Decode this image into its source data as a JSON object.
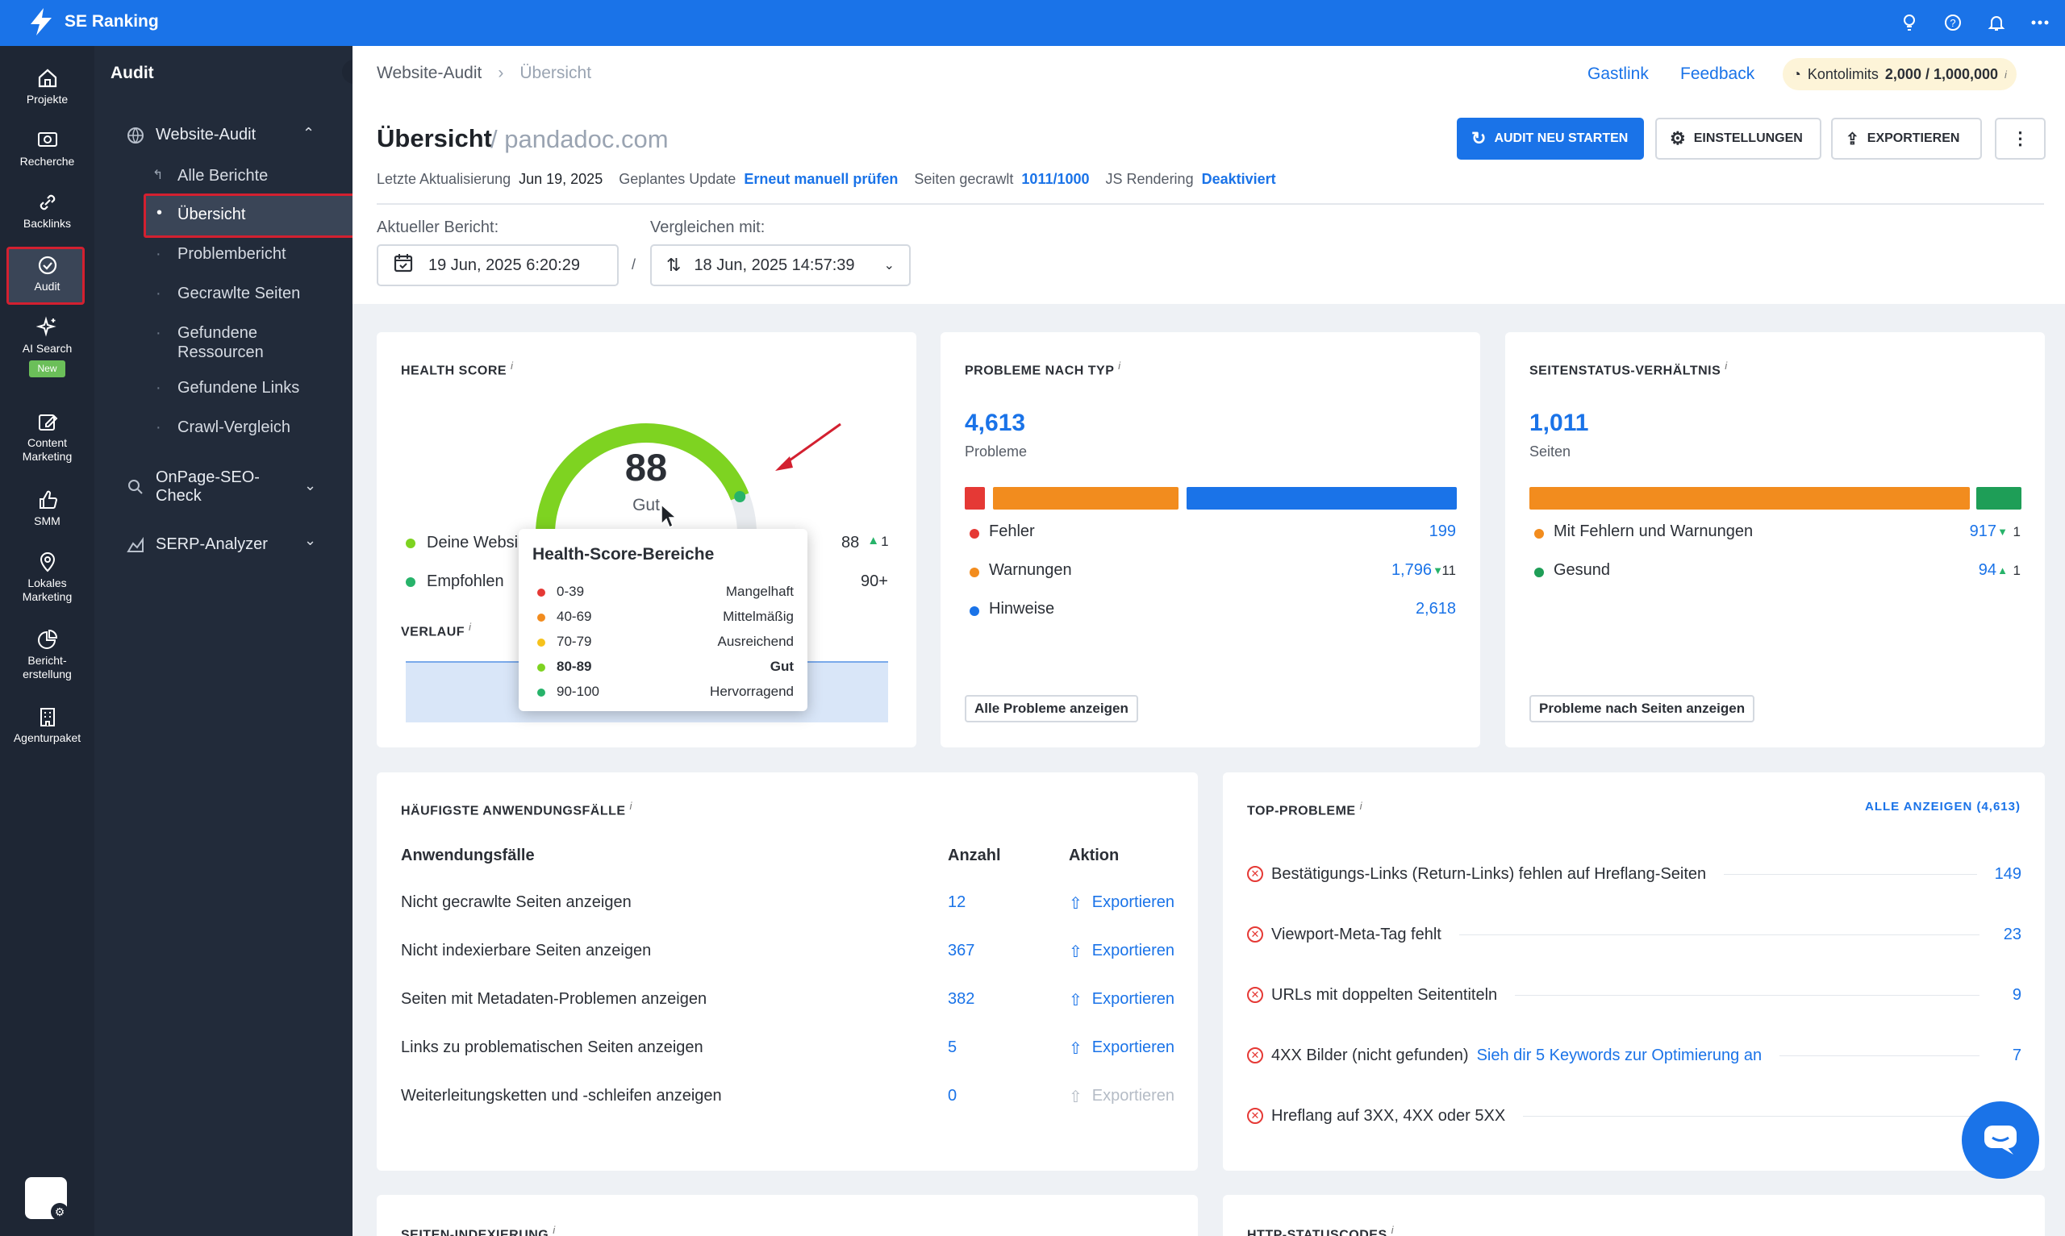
{
  "app": {
    "name": "SE Ranking"
  },
  "leftnav": [
    {
      "label": "Projekte",
      "icon": "home-icon"
    },
    {
      "label": "Recherche",
      "icon": "search-icon"
    },
    {
      "label": "Backlinks",
      "icon": "link-icon"
    },
    {
      "label": "Audit",
      "icon": "check-circle-icon"
    },
    {
      "label": "AI Search",
      "icon": "sparkle-icon",
      "badge": "New"
    },
    {
      "label": "Content Marketing",
      "icon": "edit-icon"
    },
    {
      "label": "SMM",
      "icon": "thumbs-up-icon"
    },
    {
      "label": "Lokales Marketing",
      "icon": "location-icon"
    },
    {
      "label": "Bericht-erstellung",
      "icon": "pie-chart-icon"
    },
    {
      "label": "Agenturpaket",
      "icon": "building-icon"
    }
  ],
  "subnav": {
    "title": "Audit",
    "website_audit": "Website-Audit",
    "items": [
      "Alle Berichte",
      "Übersicht",
      "Problembericht",
      "Gecrawlte Seiten",
      "Gefundene Ressourcen",
      "Gefundene Links",
      "Crawl-Vergleich"
    ],
    "onpage": "OnPage-SEO-Check",
    "serp": "SERP-Analyzer"
  },
  "breadcrumb": {
    "parent": "Website-Audit",
    "current": "Übersicht"
  },
  "header_links": {
    "guest": "Gastlink",
    "feedback": "Feedback",
    "limits_label": "Kontolimits",
    "limits_value": "2,000 / 1,000,000"
  },
  "page": {
    "title": "Übersicht",
    "domain": "/ pandadoc.com"
  },
  "meta": {
    "last_update_label": "Letzte Aktualisierung",
    "last_update": "Jun 19, 2025",
    "planned_label": "Geplantes Update",
    "planned": "Erneut manuell prüfen",
    "crawled_label": "Seiten gecrawlt",
    "crawled": "1011/1000",
    "js_label": "JS Rendering",
    "js": "Deaktiviert"
  },
  "actions": {
    "restart": "AUDIT NEU STARTEN",
    "settings": "EINSTELLUNGEN",
    "export": "EXPORTIEREN"
  },
  "reports": {
    "current_label": "Aktueller Bericht:",
    "current": "19 Jun, 2025 6:20:29",
    "compare_label": "Vergleichen mit:",
    "compare": "18 Jun, 2025 14:57:39",
    "separator": "/"
  },
  "health": {
    "title": "HEALTH SCORE",
    "score": "88",
    "score_value": 88,
    "rating": "Gut",
    "yours_label": "Deine Websi",
    "yours_value": "88",
    "yours_delta": "1",
    "recommended_label": "Empfohlen",
    "recommended_value": "90+",
    "history_label": "VERLAUF"
  },
  "tooltip": {
    "title": "Health-Score-Bereiche",
    "rows": [
      {
        "range": "0-39",
        "label": "Mangelhaft",
        "color": "#e53935"
      },
      {
        "range": "40-69",
        "label": "Mittelmäßig",
        "color": "#f28c1e"
      },
      {
        "range": "70-79",
        "label": "Ausreichend",
        "color": "#f6c21c"
      },
      {
        "range": "80-89",
        "label": "Gut",
        "color": "#7ed321"
      },
      {
        "range": "90-100",
        "label": "Hervorragend",
        "color": "#27b36a"
      }
    ]
  },
  "issues": {
    "title": "PROBLEME NACH TYP",
    "total": "4,613",
    "unit": "Probleme",
    "rows": [
      {
        "label": "Fehler",
        "value": "199",
        "delta": "",
        "color": "#e53935"
      },
      {
        "label": "Warnungen",
        "value": "1,796",
        "delta": "11",
        "color": "#f28c1e"
      },
      {
        "label": "Hinweise",
        "value": "2,618",
        "delta": "",
        "color": "#1a73e8"
      }
    ],
    "button": "Alle Probleme anzeigen"
  },
  "status": {
    "title": "SEITENSTATUS-VERHÄLTNIS",
    "total": "1,011",
    "unit": "Seiten",
    "rows": [
      {
        "label": "Mit Fehlern und Warnungen",
        "value": "917",
        "delta": "1",
        "color": "#f28c1e"
      },
      {
        "label": "Gesund",
        "value": "94",
        "delta": "1",
        "color": "#1e9e57"
      }
    ],
    "button": "Probleme nach Seiten anzeigen"
  },
  "usecases": {
    "title": "HÄUFIGSTE ANWENDUNGSFÄLLE",
    "col_case": "Anwendungsfälle",
    "col_count": "Anzahl",
    "col_action": "Aktion",
    "rows": [
      {
        "label": "Nicht gecrawlte Seiten anzeigen",
        "count": "12",
        "action": "Exportieren"
      },
      {
        "label": "Nicht indexierbare Seiten anzeigen",
        "count": "367",
        "action": "Exportieren"
      },
      {
        "label": "Seiten mit Metadaten-Problemen anzeigen",
        "count": "382",
        "action": "Exportieren"
      },
      {
        "label": "Links zu problematischen Seiten anzeigen",
        "count": "5",
        "action": "Exportieren"
      },
      {
        "label": "Weiterleitungsketten und -schleifen anzeigen",
        "count": "0",
        "action": "Exportieren"
      }
    ]
  },
  "top": {
    "title": "TOP-PROBLEME",
    "see_all": "ALLE ANZEIGEN (4,613)",
    "rows": [
      {
        "label": "Bestätigungs-Links (Return-Links) fehlen auf Hreflang-Seiten",
        "link": "",
        "count": "149"
      },
      {
        "label": "Viewport-Meta-Tag fehlt",
        "link": "",
        "count": "23"
      },
      {
        "label": "URLs mit doppelten Seitentiteln",
        "link": "",
        "count": "9"
      },
      {
        "label": "4XX Bilder (nicht gefunden)",
        "link": "Sieh dir 5 Keywords zur Optimierung an",
        "count": "7"
      },
      {
        "label": "Hreflang auf 3XX, 4XX oder 5XX",
        "link": "",
        "count": ""
      }
    ]
  },
  "bottom": {
    "indexing": "SEITEN-INDEXIERUNG",
    "http": "HTTP-STATUSCODES"
  }
}
